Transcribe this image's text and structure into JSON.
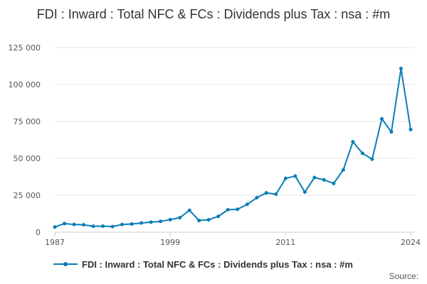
{
  "chart_data": {
    "type": "line",
    "title": "FDI : Inward : Total NFC & FCs : Dividends plus Tax : nsa : #m",
    "xlabel": "",
    "ylabel": "",
    "x": [
      1987,
      1988,
      1989,
      1990,
      1991,
      1992,
      1993,
      1994,
      1995,
      1996,
      1997,
      1998,
      1999,
      2000,
      2001,
      2002,
      2003,
      2004,
      2005,
      2006,
      2007,
      2008,
      2009,
      2010,
      2011,
      2012,
      2013,
      2014,
      2015,
      2016,
      2017,
      2018,
      2019,
      2020,
      2021,
      2022,
      2023,
      2024
    ],
    "series": [
      {
        "name": "FDI : Inward : Total NFC & FCs : Dividends plus Tax : nsa : #m",
        "color": "#0a7db8",
        "values": [
          3500,
          5800,
          5200,
          5000,
          4000,
          4100,
          3800,
          5200,
          5500,
          6200,
          6800,
          7300,
          8500,
          9800,
          14800,
          7900,
          8400,
          10700,
          15200,
          15500,
          18800,
          23300,
          26600,
          25700,
          36400,
          38000,
          27200,
          37000,
          35400,
          33000,
          42200,
          61200,
          53400,
          49400,
          76800,
          67900,
          110800,
          69500
        ]
      }
    ],
    "xticks": [
      "1987",
      "1999",
      "2011",
      "2024"
    ],
    "yticks": [
      "0",
      "25 000",
      "50 000",
      "75 000",
      "100 000",
      "125 000"
    ],
    "ylim": [
      0,
      125000
    ],
    "xlim": [
      1987,
      2024
    ],
    "grid": true,
    "legend_position": "bottom-left"
  },
  "footer": {
    "source_label": "Source:"
  }
}
